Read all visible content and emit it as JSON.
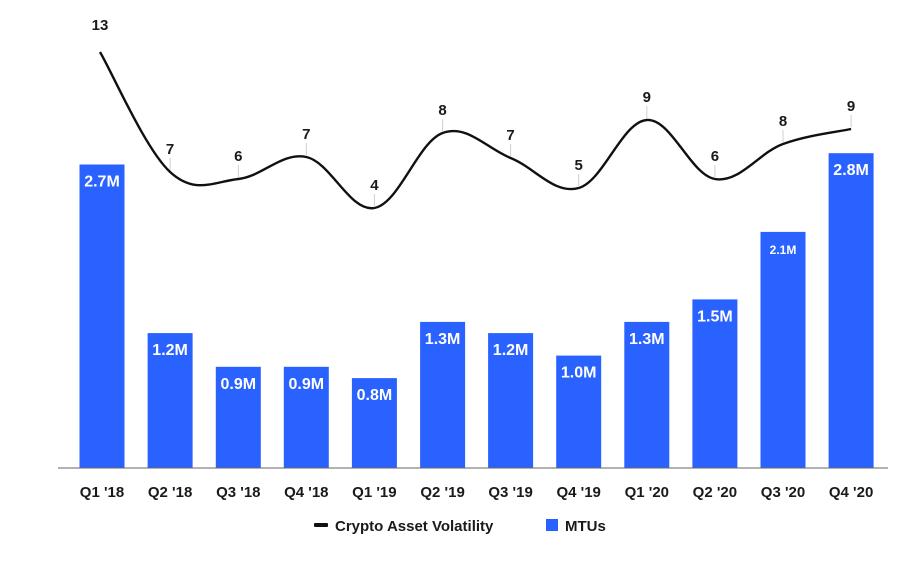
{
  "chart_data": {
    "type": "bar",
    "title": "",
    "xlabel": "",
    "ylabel": "",
    "grid": false,
    "legend_position": "bottom-center",
    "categories": [
      "Q1 '18",
      "Q2 '18",
      "Q3 '18",
      "Q4 '18",
      "Q1 '19",
      "Q2 '19",
      "Q3 '19",
      "Q4 '19",
      "Q1 '20",
      "Q2 '20",
      "Q3 '20",
      "Q4 '20"
    ],
    "series": [
      {
        "name": "MTUs",
        "type": "bar",
        "color": "#2962ff",
        "values": [
          2.7,
          1.2,
          0.9,
          0.9,
          0.8,
          1.3,
          1.2,
          1.0,
          1.3,
          1.5,
          2.1,
          2.8
        ],
        "labels": [
          "2.7M",
          "1.2M",
          "0.9M",
          "0.9M",
          "0.8M",
          "1.3M",
          "1.2M",
          "1.0M",
          "1.3M",
          "1.5M",
          "2.1M",
          "2.8M"
        ],
        "ylim": [
          0,
          2.9
        ]
      },
      {
        "name": "Crypto Asset Volatility",
        "type": "line",
        "color": "#111111",
        "values": [
          13,
          7,
          6,
          7,
          4,
          8,
          7,
          5,
          9,
          6,
          8,
          9
        ],
        "labels": [
          "13",
          "7",
          "6",
          "7",
          "4",
          "8",
          "7",
          "5",
          "9",
          "6",
          "8",
          "9"
        ]
      }
    ],
    "legend": [
      {
        "name": "Crypto Asset Volatility",
        "marker": "line",
        "color": "#111111"
      },
      {
        "name": "MTUs",
        "marker": "square",
        "color": "#2962ff"
      }
    ]
  }
}
